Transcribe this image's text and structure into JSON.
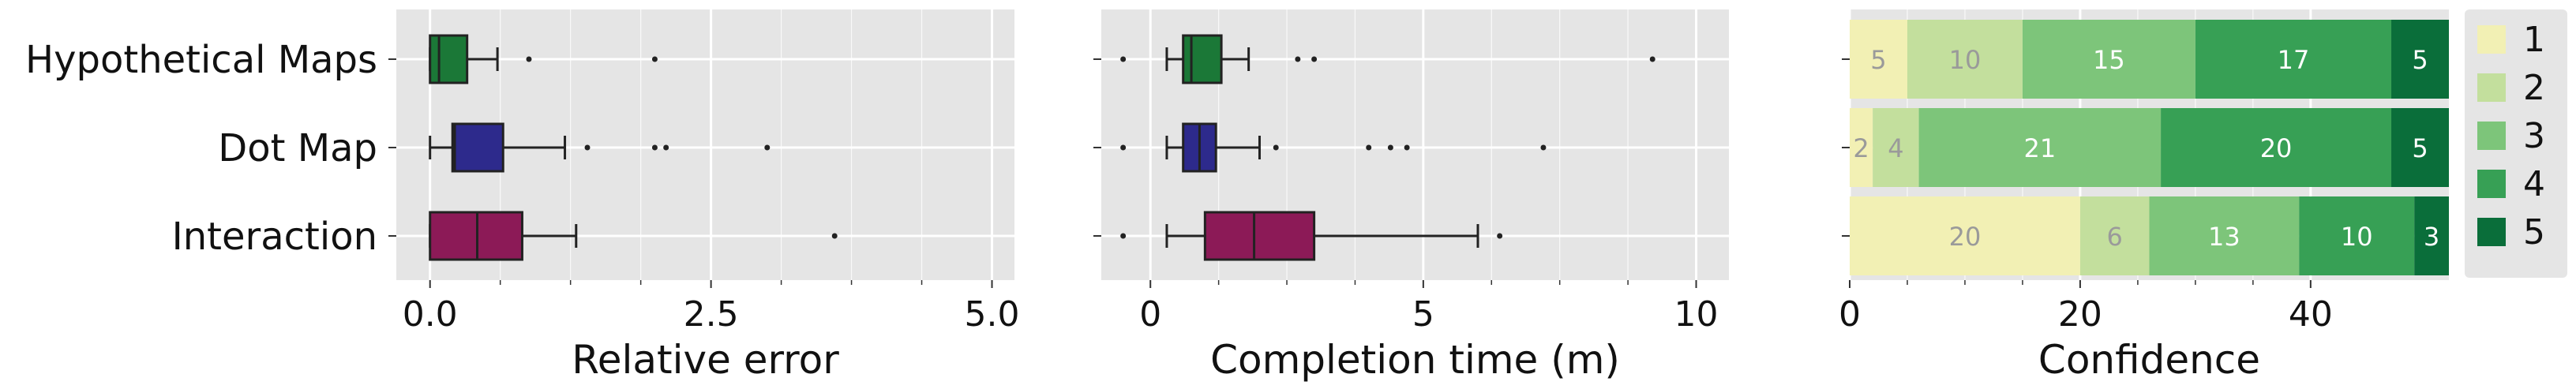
{
  "chart_data": [
    {
      "type": "boxplot",
      "xlabel": "Relative error",
      "xlim": [
        -0.3,
        5.2
      ],
      "xticks": [
        0.0,
        2.5,
        5.0
      ],
      "xtick_labels": [
        "0.0",
        "2.5",
        "5.0"
      ],
      "grid": true,
      "categories": [
        "Hypothetical Maps",
        "Dot Map",
        "Interaction"
      ],
      "series": [
        {
          "q1": 0.0,
          "median": 0.08,
          "q3": 0.33,
          "whisker_low": 0.0,
          "whisker_high": 0.6,
          "outliers": [
            0.88,
            2.0
          ],
          "color": "#1b7837"
        },
        {
          "q1": 0.2,
          "median": 0.22,
          "q3": 0.65,
          "whisker_low": 0.0,
          "whisker_high": 1.2,
          "outliers": [
            1.4,
            2.0,
            2.1,
            3.0
          ],
          "color": "#2d2a8c"
        },
        {
          "q1": 0.0,
          "median": 0.42,
          "q3": 0.82,
          "whisker_low": 0.0,
          "whisker_high": 1.3,
          "outliers": [
            3.6
          ],
          "color": "#8c1a57"
        }
      ]
    },
    {
      "type": "boxplot",
      "xlabel": "Completion time (m)",
      "xlim": [
        -0.9,
        10.6
      ],
      "xticks": [
        0,
        5,
        10
      ],
      "xtick_labels": [
        "0",
        "5",
        "10"
      ],
      "grid": true,
      "categories": [
        "Hypothetical Maps",
        "Dot Map",
        "Interaction"
      ],
      "series": [
        {
          "q1": 0.6,
          "median": 0.75,
          "q3": 1.3,
          "whisker_low": 0.3,
          "whisker_high": 1.8,
          "outliers": [
            -0.5,
            2.7,
            3.0,
            9.2
          ],
          "color": "#1b7837"
        },
        {
          "q1": 0.6,
          "median": 0.9,
          "q3": 1.2,
          "whisker_low": 0.3,
          "whisker_high": 2.0,
          "outliers": [
            -0.5,
            2.3,
            4.0,
            4.4,
            4.7,
            7.2
          ],
          "color": "#2d2a8c"
        },
        {
          "q1": 1.0,
          "median": 1.9,
          "q3": 3.0,
          "whisker_low": 0.3,
          "whisker_high": 6.0,
          "outliers": [
            -0.5,
            6.4
          ],
          "color": "#8c1a57"
        }
      ]
    },
    {
      "type": "stacked_bar",
      "orientation": "horizontal",
      "xlabel": "Confidence",
      "xlim": [
        0,
        52
      ],
      "xticks": [
        0,
        20,
        40
      ],
      "xtick_labels": [
        "0",
        "20",
        "40"
      ],
      "categories": [
        "Hypothetical Maps",
        "Dot Map",
        "Interaction"
      ],
      "legend_position": "right",
      "series": [
        {
          "name": "1",
          "color": "#f2f0b4",
          "values": [
            5,
            2,
            20
          ]
        },
        {
          "name": "2",
          "color": "#c3df9d",
          "values": [
            10,
            4,
            6
          ]
        },
        {
          "name": "3",
          "color": "#7dc57a",
          "values": [
            15,
            21,
            13
          ]
        },
        {
          "name": "4",
          "color": "#37a055",
          "values": [
            17,
            20,
            10
          ]
        },
        {
          "name": "5",
          "color": "#0a6e3a",
          "values": [
            5,
            5,
            3
          ]
        }
      ]
    }
  ],
  "colors": {
    "plot_background": "#e5e5e5",
    "grid": "#ffffff",
    "legend_background": "#e5e5e5"
  }
}
